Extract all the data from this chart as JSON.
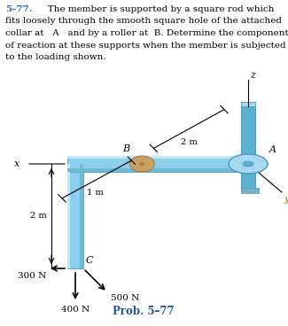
{
  "title_number": "5–77.",
  "title_lines": [
    "   The member is supported by a square rod which",
    "fits loosely through the smooth square hole of the attached",
    "collar at  A  and by a roller at  B. Determine the components",
    "of reaction at these supports when the member is subjected",
    "to the loading shown."
  ],
  "prob_label": "Prob. 5–77",
  "labels": {
    "A": "A",
    "B": "B",
    "C": "C",
    "x": "x",
    "y": "y",
    "z": "z"
  },
  "dim_1m": "1 m",
  "dim_2m_h": "2 m",
  "dim_2m_v": "2 m",
  "f300": "300 N",
  "f400": "400 N",
  "f500": "500 N",
  "beam_light": "#8DCFEA",
  "beam_mid": "#6BBAD8",
  "beam_dark": "#4A9BBF",
  "beam_shadow": "#AADAEE",
  "collar_body": "#5BB0D0",
  "collar_ring_light": "#A8D8EE",
  "collar_ring_dark": "#78B8D8",
  "rod_color": "#68B8D4",
  "roller_tan": "#C8A060",
  "roller_tan_dark": "#A88040",
  "text_black": "#000000",
  "title_num_color": "#3366BB",
  "prob_color": "#2255AA",
  "label_italic_color": "#CC6600",
  "bg": "#FFFFFF"
}
